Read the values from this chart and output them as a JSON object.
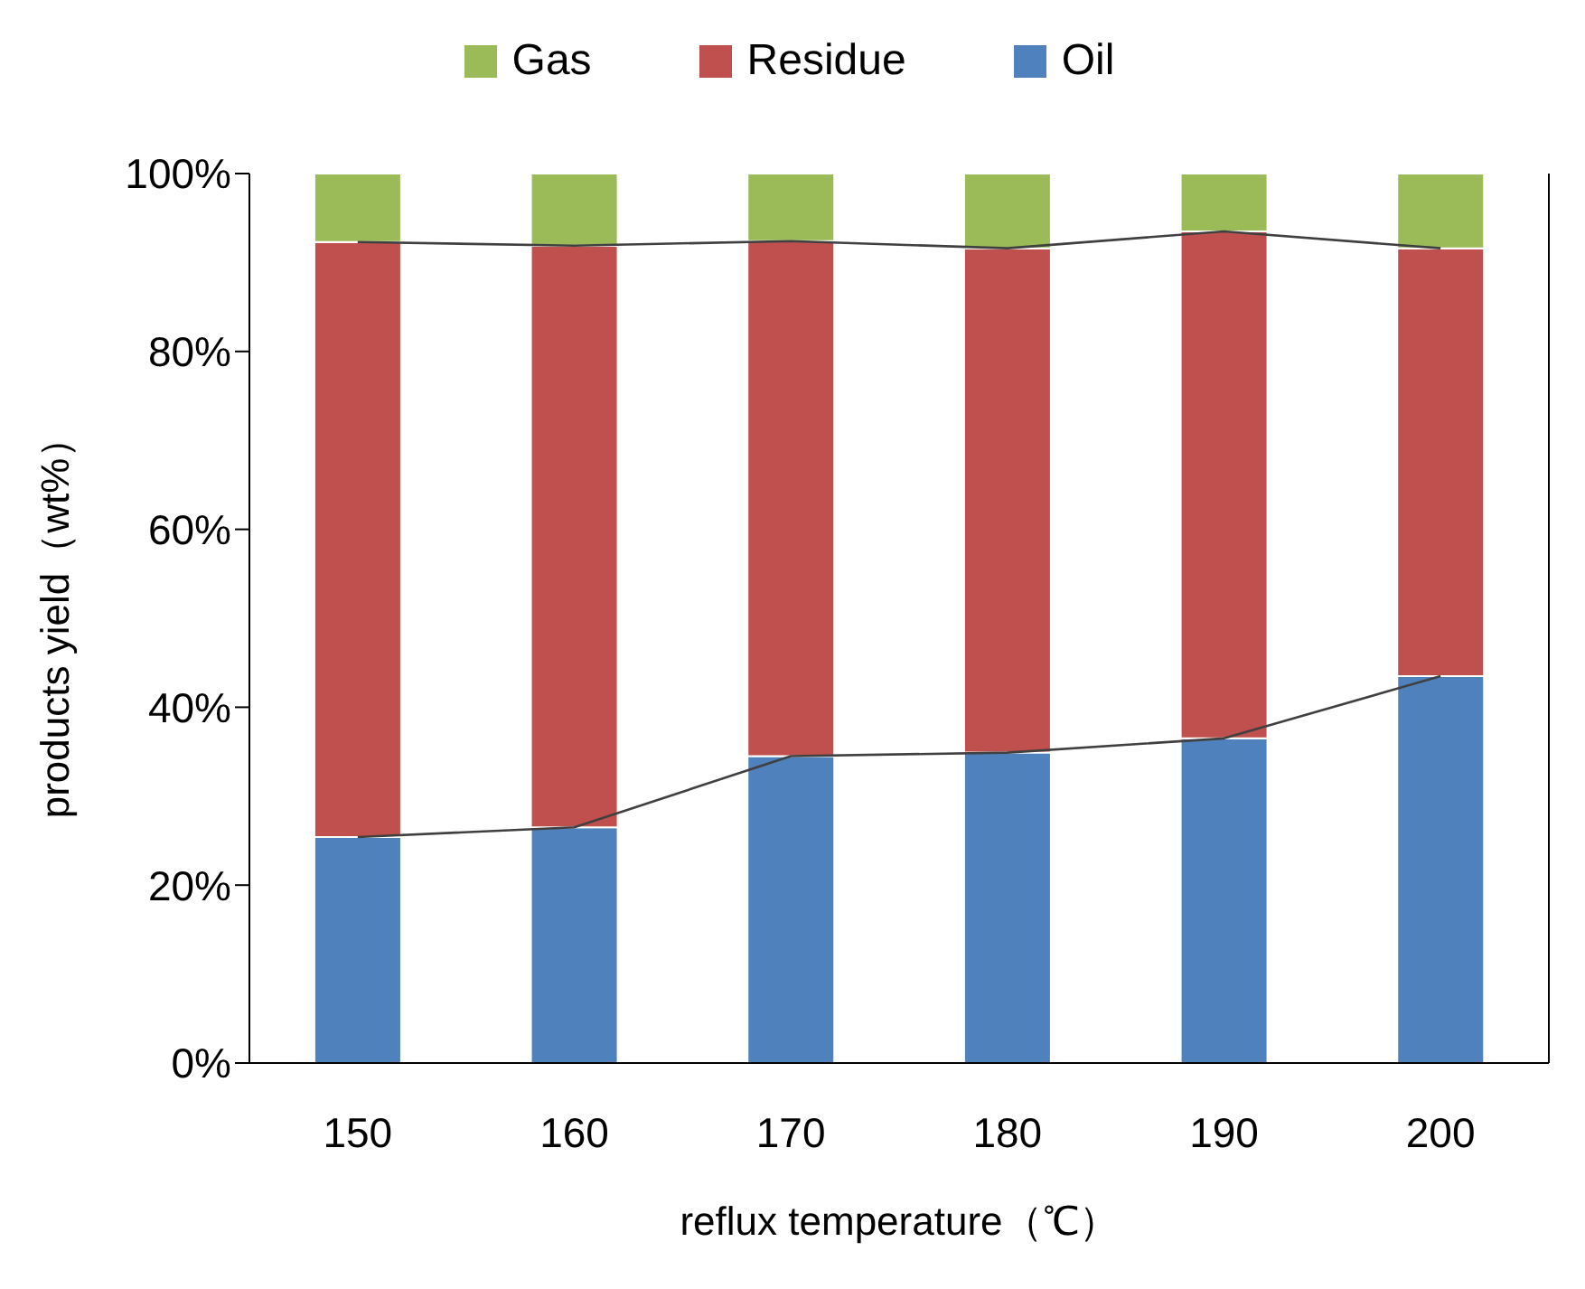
{
  "chart_data": {
    "type": "bar",
    "stacked": true,
    "xlabel": "reflux temperature（℃）",
    "ylabel": "products yield（wt%）",
    "categories": [
      "150",
      "160",
      "170",
      "180",
      "190",
      "200"
    ],
    "series": [
      {
        "name": "Oil",
        "color": "#4f81bd",
        "values": [
          25.4,
          26.5,
          34.5,
          34.9,
          36.5,
          43.5
        ]
      },
      {
        "name": "Residue",
        "color": "#c0504d",
        "values": [
          66.9,
          65.4,
          57.9,
          56.7,
          57.0,
          48.1
        ]
      },
      {
        "name": "Gas",
        "color": "#9bbb59",
        "values": [
          7.7,
          8.1,
          7.6,
          8.4,
          6.5,
          8.4
        ]
      },
      {
        "type": "line",
        "color": "#404040",
        "values": [
          25.4,
          26.5,
          34.5,
          34.9,
          36.5,
          43.5
        ]
      },
      {
        "type": "line",
        "color": "#404040",
        "values": [
          92.3,
          91.9,
          92.4,
          91.6,
          93.5,
          91.6
        ]
      }
    ],
    "ylim": [
      0,
      100
    ],
    "yticks": [
      {
        "value": 0,
        "label": "0%"
      },
      {
        "value": 20,
        "label": "20%"
      },
      {
        "value": 40,
        "label": "40%"
      },
      {
        "value": 60,
        "label": "60%"
      },
      {
        "value": 80,
        "label": "80%"
      },
      {
        "value": 100,
        "label": "100%"
      }
    ],
    "legend": "top",
    "marker": "none",
    "line_style": "solid"
  }
}
